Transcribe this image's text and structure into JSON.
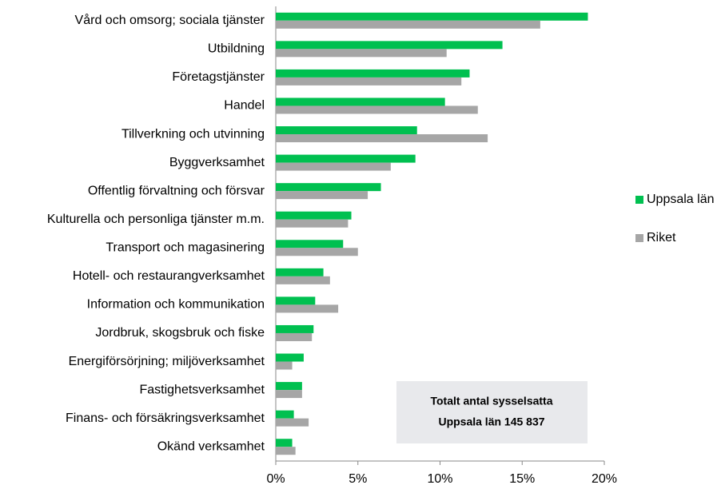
{
  "chart_data": {
    "type": "barh",
    "categories": [
      "Vård och omsorg; sociala tjänster",
      "Utbildning",
      "Företagstjänster",
      "Handel",
      "Tillverkning och utvinning",
      "Byggverksamhet",
      "Offentlig förvaltning och försvar",
      "Kulturella och personliga tjänster m.m.",
      "Transport och magasinering",
      "Hotell- och restaurangverksamhet",
      "Information och kommunikation",
      "Jordbruk, skogsbruk och fiske",
      "Energiförsörjning; miljöverksamhet",
      "Fastighetsverksamhet",
      "Finans- och försäkringsverksamhet",
      "Okänd verksamhet"
    ],
    "series": [
      {
        "name": "Uppsala län",
        "color": "#00c050",
        "values": [
          19.0,
          13.8,
          11.8,
          10.3,
          8.6,
          8.5,
          6.4,
          4.6,
          4.1,
          2.9,
          2.4,
          2.3,
          1.7,
          1.6,
          1.1,
          1.0
        ]
      },
      {
        "name": "Riket",
        "color": "#a6a6a6",
        "values": [
          16.1,
          10.4,
          11.3,
          12.3,
          12.9,
          7.0,
          5.6,
          4.4,
          5.0,
          3.3,
          3.8,
          2.2,
          1.0,
          1.6,
          2.0,
          1.2
        ]
      }
    ],
    "xlim": [
      0,
      20
    ],
    "xticks": [
      {
        "value": 0,
        "label": "0%"
      },
      {
        "value": 5,
        "label": "5%"
      },
      {
        "value": 10,
        "label": "10%"
      },
      {
        "value": 15,
        "label": "15%"
      },
      {
        "value": 20,
        "label": "20%"
      }
    ],
    "legend": "right",
    "annotation": [
      "Totalt antal sysselsatta",
      "Uppsala län 145 837"
    ]
  }
}
